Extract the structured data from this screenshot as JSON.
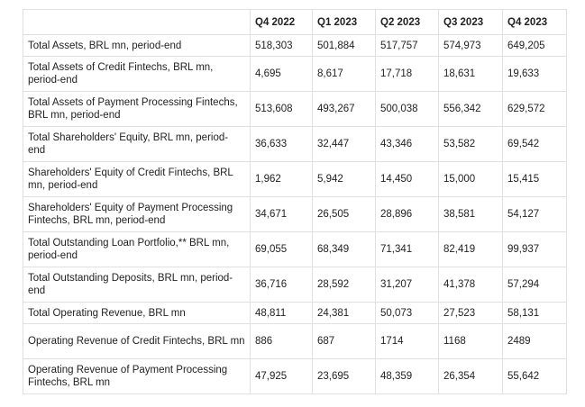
{
  "table": {
    "header": [
      "Q4 2022",
      "Q1 2023",
      "Q2 2023",
      "Q3 2023",
      "Q4 2023"
    ],
    "rows": [
      [
        "Total Assets, BRL mn, period-end",
        "518,303",
        "501,884",
        "517,757",
        "574,973",
        "649,205"
      ],
      [
        "Total Assets of Credit Fintechs, BRL mn, period-end",
        "4,695",
        "8,617",
        "17,718",
        "18,631",
        "19,633"
      ],
      [
        "Total Assets of Payment Processing Fintechs, BRL mn, period-end",
        "513,608",
        "493,267",
        "500,038",
        "556,342",
        "629,572"
      ],
      [
        "Total Shareholders' Equity, BRL mn, period-end",
        "36,633",
        "32,447",
        "43,346",
        "53,582",
        "69,542"
      ],
      [
        "Shareholders' Equity of Credit Fintechs, BRL mn, period-end",
        "1,962",
        "5,942",
        "14,450",
        "15,000",
        "15,415"
      ],
      [
        "Shareholders' Equity of Payment Processing Fintechs, BRL mn, period-end",
        "34,671",
        "26,505",
        "28,896",
        "38,581",
        "54,127"
      ],
      [
        "Total Outstanding Loan Portfolio,** BRL mn, period-end",
        "69,055",
        "68,349",
        "71,341",
        "82,419",
        "99,937"
      ],
      [
        "Total Outstanding Deposits, BRL mn, period-end",
        "36,716",
        "28,592",
        "31,207",
        "41,378",
        "57,294"
      ],
      [
        "Total Operating Revenue, BRL mn",
        "48,811",
        "24,381",
        "50,073",
        "27,523",
        "58,131"
      ],
      [
        "Operating Revenue of Credit Fintechs, BRL mn",
        "886",
        "687",
        "1714",
        "1168",
        "2489"
      ],
      [
        "Operating Revenue of Payment Processing Fintechs, BRL mn",
        "47,925",
        "23,695",
        "48,359",
        "26,354",
        "55,642"
      ]
    ]
  }
}
